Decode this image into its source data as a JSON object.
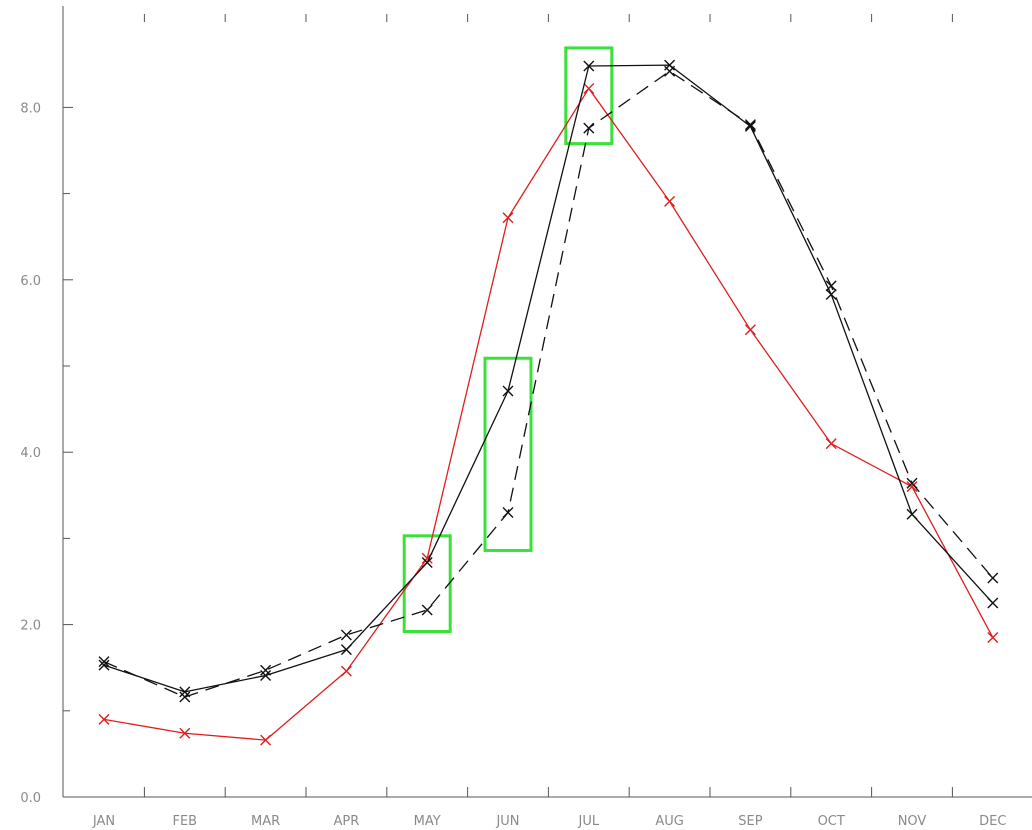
{
  "chart_data": {
    "type": "line",
    "categories": [
      "JAN",
      "FEB",
      "MAR",
      "APR",
      "MAY",
      "JUN",
      "JUL",
      "AUG",
      "SEP",
      "OCT",
      "NOV",
      "DEC"
    ],
    "ylim": [
      0,
      9
    ],
    "y_ticks": [
      {
        "value": 0,
        "label": "0.0"
      },
      {
        "value": 2,
        "label": "2.0"
      },
      {
        "value": 4,
        "label": "4.0"
      },
      {
        "value": 6,
        "label": "6.0"
      },
      {
        "value": 8,
        "label": "8.0"
      }
    ],
    "y_minor_ticks": [
      1,
      3,
      5,
      7
    ],
    "grid": false,
    "legend": "none",
    "marker": "x",
    "series": [
      {
        "color": "#e01e1e",
        "dash": "solid",
        "values": [
          0.9,
          0.74,
          0.66,
          1.46,
          2.77,
          6.72,
          8.22,
          6.91,
          5.42,
          4.1,
          3.6,
          1.85
        ]
      },
      {
        "color": "#111111",
        "dash": "solid",
        "values": [
          1.53,
          1.22,
          1.41,
          1.71,
          2.72,
          4.71,
          8.48,
          8.49,
          7.78,
          5.83,
          3.28,
          2.25
        ]
      },
      {
        "color": "#111111",
        "dash": "dashed",
        "values": [
          1.57,
          1.16,
          1.47,
          1.88,
          2.17,
          3.3,
          7.76,
          8.42,
          7.8,
          5.93,
          3.64,
          2.54
        ]
      }
    ],
    "highlights": [
      {
        "category": "MAY",
        "y_range": [
          1.92,
          3.03
        ]
      },
      {
        "category": "JUN",
        "y_range": [
          2.86,
          5.09
        ]
      },
      {
        "category": "JUL",
        "y_range": [
          7.58,
          8.69
        ]
      }
    ],
    "highlight_color": "#3be03b"
  }
}
